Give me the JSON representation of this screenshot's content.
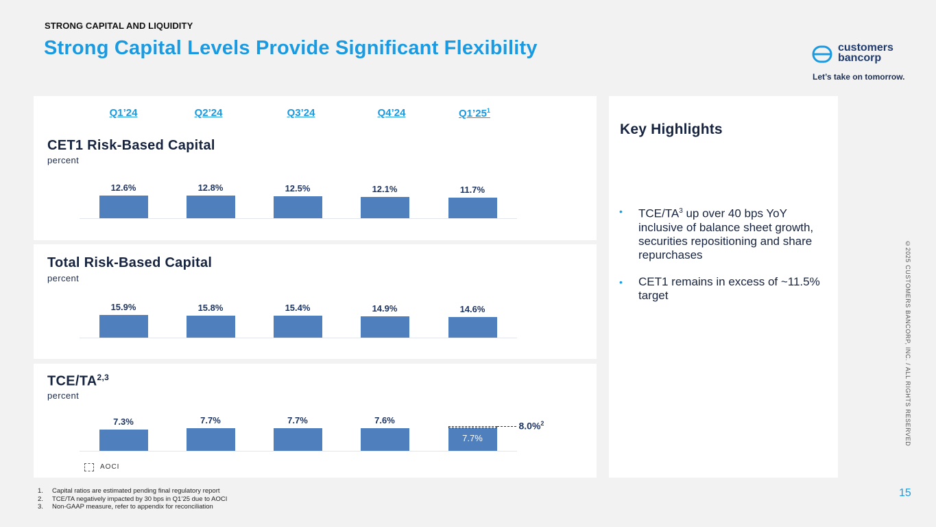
{
  "header": {
    "kicker": "STRONG CAPITAL AND LIQUIDITY",
    "title": "Strong Capital Levels Provide Significant Flexibility"
  },
  "logo": {
    "line1": "customers",
    "line2": "bancorp",
    "tagline": "Let’s take on tomorrow."
  },
  "quarters": [
    {
      "label": "Q1’24",
      "sup": ""
    },
    {
      "label": "Q2’24",
      "sup": ""
    },
    {
      "label": "Q3’24",
      "sup": ""
    },
    {
      "label": "Q4’24",
      "sup": ""
    },
    {
      "label": "Q1’25",
      "sup": "1"
    }
  ],
  "colors": {
    "bar": "#4f80bd",
    "accent": "#1a9ae0",
    "navy": "#16233f"
  },
  "chart_data": [
    {
      "type": "bar",
      "title": "CET1 Risk-Based Capital",
      "title_sup": "",
      "ylabel": "percent",
      "categories": [
        "Q1’24",
        "Q2’24",
        "Q3’24",
        "Q4’24",
        "Q1’25"
      ],
      "values": [
        12.6,
        12.8,
        12.5,
        12.1,
        11.7
      ],
      "value_labels": [
        "12.6%",
        "12.8%",
        "12.5%",
        "12.1%",
        "11.7%"
      ],
      "ylim": [
        0,
        100
      ]
    },
    {
      "type": "bar",
      "title": "Total Risk-Based Capital",
      "title_sup": "",
      "ylabel": "percent",
      "categories": [
        "Q1’24",
        "Q2’24",
        "Q3’24",
        "Q4’24",
        "Q1’25"
      ],
      "values": [
        15.9,
        15.8,
        15.4,
        14.9,
        14.6
      ],
      "value_labels": [
        "15.9%",
        "15.8%",
        "15.4%",
        "14.9%",
        "14.6%"
      ],
      "ylim": [
        0,
        100
      ]
    },
    {
      "type": "bar",
      "title": "TCE/TA",
      "title_sup": "2,3",
      "ylabel": "percent",
      "categories": [
        "Q1’24",
        "Q2’24",
        "Q3’24",
        "Q4’24",
        "Q1’25"
      ],
      "values": [
        7.3,
        7.7,
        7.7,
        7.6,
        7.7
      ],
      "value_labels": [
        "7.3%",
        "7.7%",
        "7.7%",
        "7.6%",
        ""
      ],
      "inner_label": "7.7%",
      "aoci_add_back": 0.3,
      "ex_aoci_label": "8.0%",
      "ex_aoci_sup": "2",
      "legend": "AOCI",
      "ylim": [
        0,
        50
      ]
    }
  ],
  "highlights": {
    "title": "Key Highlights",
    "bullets": [
      {
        "pre": "TCE/TA",
        "sup": "3",
        "post": " up over 40 bps YoY inclusive of balance sheet growth, securities repositioning and share repurchases"
      },
      {
        "pre": "CET1 remains in excess of ~11.5% target",
        "sup": "",
        "post": ""
      }
    ]
  },
  "footnotes": [
    {
      "num": "1.",
      "text": "Capital ratios are estimated pending final regulatory report"
    },
    {
      "num": "2.",
      "text": "TCE/TA negatively impacted by 30 bps in Q1’25 due to AOCI"
    },
    {
      "num": "3.",
      "text": "Non-GAAP measure, refer to appendix for reconciliation"
    }
  ],
  "page_number": "15",
  "copyright": "©2025 CUSTOMERS BANCORP, INC. / ALL RIGHTS RESERVED"
}
